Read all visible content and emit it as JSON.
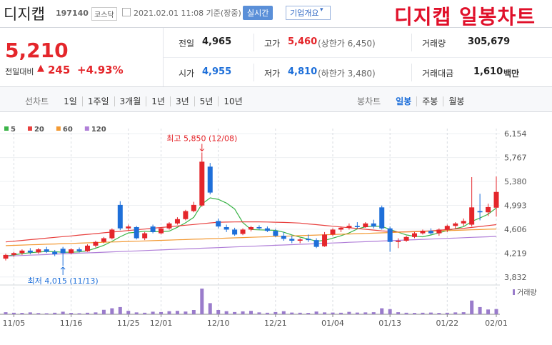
{
  "header": {
    "name": "디지캡",
    "code": "197140",
    "market": "코스닥",
    "timestamp": "2021.02.01 11:08 기준(장중)",
    "realtime": "실시간",
    "company_info": "기업개요"
  },
  "annotation": "디지캡 일봉차트",
  "quote": {
    "price": "5,210",
    "change_label": "전일대비",
    "change": "245",
    "change_pct": "+4.93%"
  },
  "stats": [
    {
      "label": "전일",
      "value": "4,965"
    },
    {
      "label": "고가",
      "value": "5,460",
      "note": "(상한가 6,450)"
    },
    {
      "label": "거래량",
      "value": "305,679"
    },
    {
      "label": "시가",
      "value": "4,955"
    },
    {
      "label": "저가",
      "value": "4,810",
      "note": "(하한가 3,480)"
    },
    {
      "label": "거래대금",
      "value": "1,610",
      "unit": "백만"
    }
  ],
  "line_tabs": {
    "label": "선차트",
    "items": [
      "1일",
      "1주일",
      "3개월",
      "1년",
      "3년",
      "5년",
      "10년"
    ]
  },
  "candle_tabs": {
    "label": "봉차트",
    "items": [
      "일봉",
      "주봉",
      "월봉"
    ]
  },
  "chart_data": {
    "type": "candlestick",
    "categories": [
      null,
      "11/05",
      null,
      null,
      null,
      null,
      null,
      null,
      "11/16",
      null,
      null,
      null,
      null,
      null,
      null,
      "11/25",
      null,
      null,
      null,
      "12/01",
      null,
      null,
      null,
      null,
      null,
      null,
      "12/10",
      null,
      null,
      null,
      null,
      null,
      null,
      "12/21",
      null,
      null,
      null,
      null,
      null,
      null,
      "01/04",
      null,
      null,
      null,
      null,
      null,
      null,
      "01/13",
      null,
      null,
      null,
      null,
      null,
      null,
      "01/22",
      null,
      null,
      null,
      null,
      null,
      "02/01"
    ],
    "open": [
      4130,
      4190,
      4220,
      4260,
      4230,
      4280,
      4240,
      4290,
      4220,
      4280,
      4250,
      4340,
      4400,
      4460,
      5000,
      4620,
      4640,
      4460,
      4650,
      4540,
      4620,
      4700,
      4770,
      4900,
      4990,
      5620,
      4740,
      4640,
      4600,
      4530,
      4600,
      4640,
      4620,
      4580,
      4500,
      4450,
      4420,
      4450,
      4430,
      4330,
      4520,
      4600,
      4630,
      4660,
      4640,
      4700,
      4960,
      4620,
      4400,
      4420,
      4480,
      4540,
      4580,
      4540,
      4600,
      4660,
      4700,
      4680,
      4900,
      4880,
      4955
    ],
    "high": [
      4210,
      4240,
      4280,
      4300,
      4300,
      4320,
      4270,
      4320,
      4300,
      4310,
      4360,
      4420,
      4480,
      4620,
      5060,
      4680,
      4660,
      4560,
      4680,
      4640,
      4720,
      4800,
      4920,
      5050,
      5850,
      5680,
      4780,
      4680,
      4630,
      4620,
      4660,
      4670,
      4650,
      4610,
      4560,
      4500,
      4460,
      4520,
      4460,
      4560,
      4620,
      4650,
      4700,
      4720,
      4720,
      4760,
      4990,
      4650,
      4460,
      4500,
      4560,
      4600,
      4620,
      4620,
      4680,
      4720,
      4780,
      5450,
      5180,
      5020,
      5460
    ],
    "low": [
      4100,
      4160,
      4190,
      4200,
      4210,
      4220,
      4170,
      4015,
      4200,
      4230,
      4240,
      4310,
      4380,
      4440,
      4590,
      4580,
      4440,
      4430,
      4540,
      4520,
      4600,
      4680,
      4750,
      4880,
      4970,
      5170,
      4620,
      4560,
      4500,
      4510,
      4570,
      4600,
      4560,
      4480,
      4420,
      4380,
      4380,
      4400,
      4300,
      4320,
      4500,
      4560,
      4600,
      4620,
      4630,
      4620,
      4600,
      4240,
      4300,
      4400,
      4460,
      4520,
      4520,
      4500,
      4560,
      4620,
      4660,
      4650,
      4750,
      4820,
      4810
    ],
    "close": [
      4190,
      4220,
      4260,
      4230,
      4280,
      4240,
      4200,
      4220,
      4280,
      4250,
      4340,
      4400,
      4460,
      4600,
      4620,
      4650,
      4460,
      4540,
      4560,
      4620,
      4700,
      4770,
      4900,
      5000,
      5700,
      5200,
      4650,
      4600,
      4520,
      4600,
      4640,
      4620,
      4580,
      4500,
      4450,
      4420,
      4440,
      4430,
      4320,
      4520,
      4600,
      4630,
      4660,
      4640,
      4700,
      4650,
      4620,
      4400,
      4420,
      4480,
      4540,
      4580,
      4540,
      4600,
      4660,
      4700,
      4740,
      4960,
      4880,
      4965,
      5210
    ],
    "up_color": "#e4262b",
    "down_color": "#1e6fd9",
    "ylim": [
      3714,
      6260
    ],
    "yticks": [
      {
        "value": 3832,
        "label": "3,832"
      },
      {
        "value": 4219,
        "label": "4,219"
      },
      {
        "value": 4606,
        "label": "4,606"
      },
      {
        "value": 4993,
        "label": "4,993"
      },
      {
        "value": 5380,
        "label": "5,380"
      },
      {
        "value": 5767,
        "label": "5,767"
      },
      {
        "value": 6154,
        "label": "6,154"
      }
    ],
    "ma_series": [
      {
        "name": "5",
        "color": "#3cb449",
        "values": [
          4170,
          4190,
          4210,
          4225,
          4236,
          4246,
          4242,
          4234,
          4234,
          4238,
          4258,
          4298,
          4346,
          4410,
          4484,
          4546,
          4558,
          4574,
          4566,
          4566,
          4576,
          4638,
          4710,
          4798,
          5014,
          5114,
          5090,
          5030,
          4934,
          4714,
          4602,
          4596,
          4592,
          4588,
          4558,
          4514,
          4478,
          4448,
          4412,
          4426,
          4462,
          4500,
          4546,
          4610,
          4646,
          4656,
          4654,
          4602,
          4558,
          4514,
          4492,
          4484,
          4512,
          4548,
          4584,
          4616,
          4648,
          4732,
          4788,
          4849,
          4951
        ]
      },
      {
        "name": "20",
        "color": "#e8403e",
        "values": [
          4400,
          4412,
          4425,
          4437,
          4449,
          4462,
          4474,
          4486,
          4498,
          4511,
          4523,
          4535,
          4548,
          4560,
          4572,
          4585,
          4597,
          4609,
          4622,
          4634,
          4646,
          4658,
          4671,
          4683,
          4695,
          4708,
          4720,
          4722,
          4724,
          4725,
          4726,
          4725,
          4723,
          4720,
          4716,
          4712,
          4706,
          4692,
          4680,
          4668,
          4655,
          4642,
          4630,
          4618,
          4605,
          4592,
          4580,
          4570,
          4560,
          4565,
          4570,
          4575,
          4580,
          4590,
          4600,
          4610,
          4620,
          4635,
          4650,
          4665,
          4680
        ]
      },
      {
        "name": "60",
        "color": "#f39a34",
        "values": [
          4340,
          4345,
          4349,
          4354,
          4358,
          4363,
          4367,
          4372,
          4376,
          4381,
          4385,
          4390,
          4394,
          4399,
          4403,
          4408,
          4412,
          4417,
          4421,
          4426,
          4430,
          4435,
          4439,
          4444,
          4448,
          4453,
          4457,
          4462,
          4466,
          4471,
          4475,
          4480,
          4484,
          4489,
          4493,
          4498,
          4502,
          4507,
          4511,
          4516,
          4520,
          4525,
          4529,
          4534,
          4538,
          4543,
          4547,
          4552,
          4556,
          4561,
          4565,
          4570,
          4574,
          4579,
          4583,
          4588,
          4592,
          4597,
          4601,
          4606,
          4610
        ]
      },
      {
        "name": "120",
        "color": "#b07fd8",
        "values": [
          4170,
          4175,
          4180,
          4186,
          4191,
          4196,
          4202,
          4207,
          4212,
          4218,
          4223,
          4228,
          4234,
          4239,
          4244,
          4250,
          4255,
          4260,
          4266,
          4271,
          4276,
          4282,
          4287,
          4292,
          4298,
          4303,
          4308,
          4314,
          4319,
          4324,
          4330,
          4335,
          4340,
          4346,
          4351,
          4356,
          4362,
          4367,
          4372,
          4378,
          4383,
          4388,
          4394,
          4399,
          4404,
          4410,
          4415,
          4420,
          4426,
          4431,
          4436,
          4442,
          4447,
          4452,
          4458,
          4463,
          4468,
          4474,
          4479,
          4484,
          4490
        ]
      }
    ],
    "volume": {
      "name": "거래량",
      "color": "#9a7ccb",
      "values": [
        120000,
        90000,
        80000,
        110000,
        70000,
        60000,
        90000,
        150000,
        80000,
        60000,
        90000,
        110000,
        260000,
        350000,
        420000,
        200000,
        110000,
        90000,
        150000,
        130000,
        180000,
        200000,
        160000,
        250000,
        1500000,
        650000,
        250000,
        180000,
        130000,
        170000,
        200000,
        110000,
        90000,
        130000,
        180000,
        100000,
        90000,
        80000,
        160000,
        110000,
        100000,
        90000,
        140000,
        100000,
        110000,
        120000,
        350000,
        300000,
        120000,
        90000,
        80000,
        90000,
        100000,
        80000,
        90000,
        110000,
        120000,
        800000,
        420000,
        280000,
        305679
      ]
    },
    "annotations": {
      "high": "최고 5,850 (12/08)",
      "low": "최저 4,015 (11/13)"
    }
  }
}
